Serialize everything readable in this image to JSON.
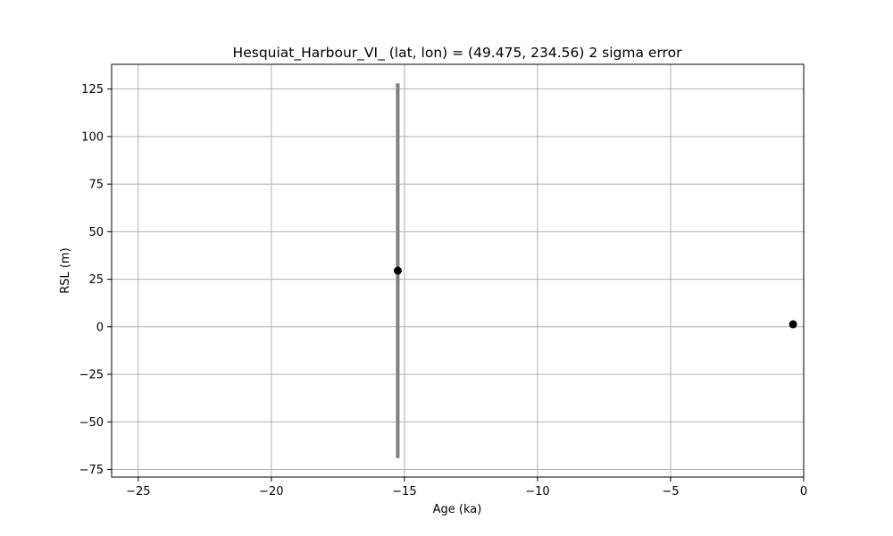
{
  "chart_data": {
    "type": "scatter",
    "title": "Hesquiat_Harbour_VI_ (lat, lon) = (49.475, 234.56)  2 sigma error",
    "xlabel": "Age (ka)",
    "ylabel": "RSL (m)",
    "xlim": [
      -26,
      0
    ],
    "ylim": [
      -79,
      138
    ],
    "x_ticks": [
      -25,
      -20,
      -15,
      -10,
      -5,
      0
    ],
    "y_ticks": [
      -75,
      -50,
      -25,
      0,
      25,
      50,
      75,
      100,
      125
    ],
    "x_tick_labels": [
      "−25",
      "−20",
      "−15",
      "−10",
      "−5",
      "0"
    ],
    "y_tick_labels": [
      "−75",
      "−50",
      "−25",
      "0",
      "25",
      "50",
      "75",
      "100",
      "125"
    ],
    "grid": true,
    "point_color": "#000000",
    "errorbar_color": "#808080",
    "points": [
      {
        "x": -15.25,
        "y": 29.5,
        "y_low": -69,
        "y_high": 128
      },
      {
        "x": -0.4,
        "y": 1.3,
        "y_low": 1.3,
        "y_high": 1.3
      }
    ]
  }
}
